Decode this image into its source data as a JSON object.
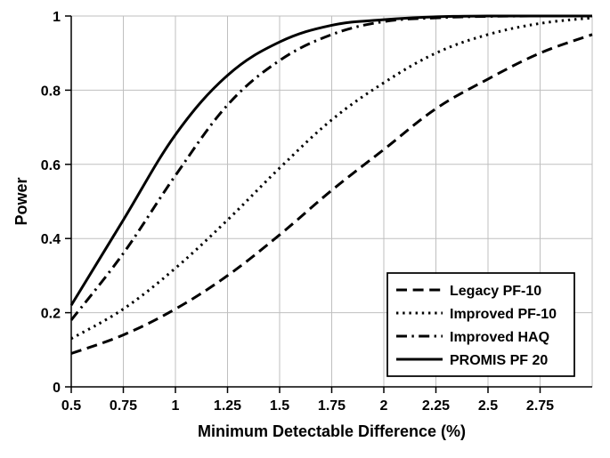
{
  "chart": {
    "type": "line",
    "xlabel": "Minimum Detectable Difference (%)",
    "ylabel": "Power",
    "label_fontsize": 18,
    "tick_fontsize": 16,
    "background_color": "#ffffff",
    "grid_color": "#bfbfbf",
    "axis_color": "#000000",
    "plot_border_color": "#000000",
    "xlim": [
      0.5,
      3.0
    ],
    "ylim": [
      0,
      1
    ],
    "xtick_step": 0.25,
    "ytick_step": 0.2,
    "xticks": [
      0.5,
      0.75,
      1,
      1.25,
      1.5,
      1.75,
      2,
      2.25,
      2.5,
      2.75
    ],
    "yticks": [
      0,
      0.2,
      0.4,
      0.6,
      0.8,
      1
    ],
    "legend": {
      "position": "bottom-right-inside",
      "border_color": "#000000",
      "items": [
        "Legacy PF-10",
        "Improved PF-10",
        "Improved HAQ",
        "PROMIS PF 20"
      ]
    },
    "series": [
      {
        "name": "Legacy PF-10",
        "color": "#000000",
        "line_width": 3,
        "dash": "dash",
        "x": [
          0.5,
          0.75,
          1.0,
          1.25,
          1.5,
          1.75,
          2.0,
          2.25,
          2.5,
          2.75,
          3.0
        ],
        "y": [
          0.09,
          0.14,
          0.21,
          0.3,
          0.41,
          0.53,
          0.64,
          0.75,
          0.83,
          0.9,
          0.95
        ]
      },
      {
        "name": "Improved PF-10",
        "color": "#000000",
        "line_width": 3,
        "dash": "dot",
        "x": [
          0.5,
          0.75,
          1.0,
          1.25,
          1.5,
          1.75,
          2.0,
          2.25,
          2.5,
          2.75,
          3.0
        ],
        "y": [
          0.13,
          0.21,
          0.32,
          0.45,
          0.59,
          0.72,
          0.82,
          0.9,
          0.95,
          0.98,
          0.995
        ]
      },
      {
        "name": "Improved HAQ",
        "color": "#000000",
        "line_width": 3,
        "dash": "dashdot",
        "x": [
          0.5,
          0.75,
          1.0,
          1.25,
          1.5,
          1.75,
          2.0,
          2.25,
          2.5,
          2.75,
          3.0
        ],
        "y": [
          0.18,
          0.36,
          0.57,
          0.76,
          0.88,
          0.95,
          0.985,
          0.995,
          0.999,
          1.0,
          1.0
        ]
      },
      {
        "name": "PROMIS PF 20",
        "color": "#000000",
        "line_width": 3,
        "dash": "solid",
        "x": [
          0.5,
          0.75,
          1.0,
          1.25,
          1.5,
          1.75,
          2.0,
          2.25,
          2.5,
          2.75,
          3.0
        ],
        "y": [
          0.22,
          0.45,
          0.68,
          0.84,
          0.93,
          0.975,
          0.99,
          0.998,
          1.0,
          1.0,
          1.0
        ]
      }
    ]
  }
}
